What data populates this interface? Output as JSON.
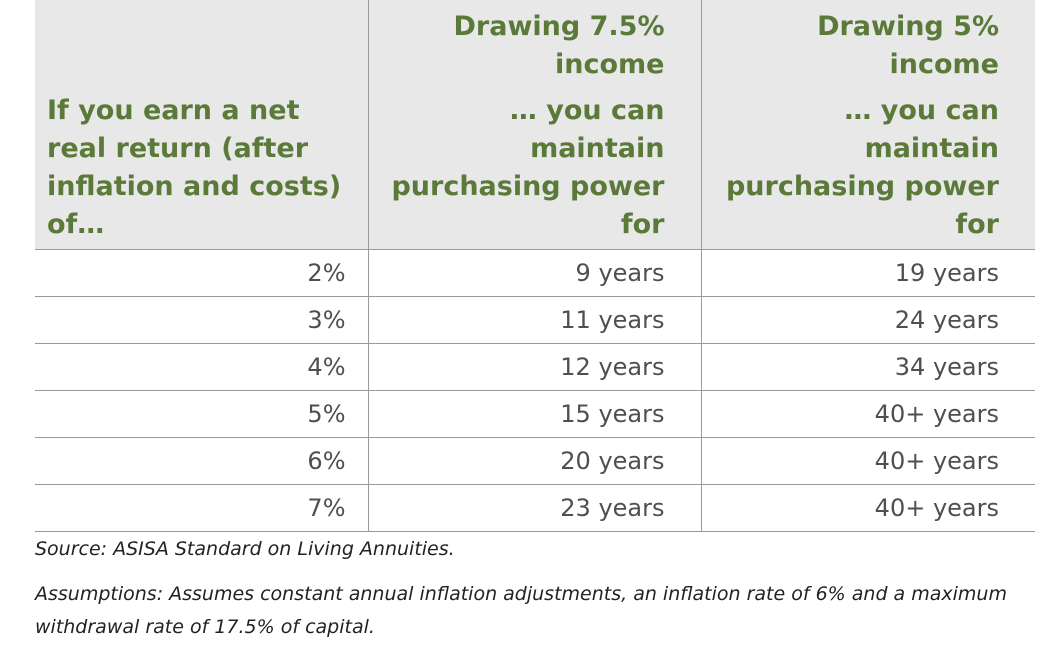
{
  "table": {
    "header": {
      "col1": "",
      "col2": "Drawing 7.5% income",
      "col3": "Drawing 5% income"
    },
    "subheader": {
      "col1": "If you earn a net real return (after inflation and costs) of…",
      "col2": "… you can maintain purchasing power for",
      "col3": "… you can maintain purchasing power for"
    },
    "rows": [
      {
        "rate": "2%",
        "draw75": "9 years",
        "draw5": "19 years"
      },
      {
        "rate": "3%",
        "draw75": "11 years",
        "draw5": "24 years"
      },
      {
        "rate": "4%",
        "draw75": "12 years",
        "draw5": "34 years"
      },
      {
        "rate": "5%",
        "draw75": "15 years",
        "draw5": "40+ years"
      },
      {
        "rate": "6%",
        "draw75": "20 years",
        "draw5": "40+ years"
      },
      {
        "rate": "7%",
        "draw75": "23 years",
        "draw5": "40+ years"
      }
    ]
  },
  "notes": {
    "source": "Source: ASISA Standard on Living Annuities.",
    "assumptions": "Assumptions: Assumes constant annual inflation adjustments, an inflation rate of 6% and a maximum withdrawal rate of 17.5% of capital."
  },
  "colors": {
    "header_bg": "#e8e8e8",
    "header_text": "#5b7a3a",
    "rule": "#9a9a9a"
  }
}
